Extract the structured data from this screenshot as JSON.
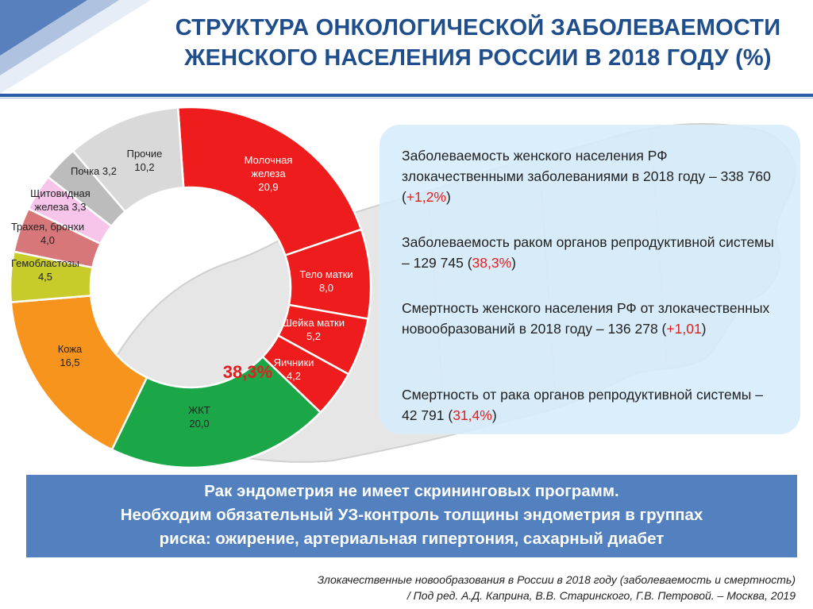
{
  "header": {
    "title_line1": "СТРУКТУРА ОНКОЛОГИЧЕСКОЙ ЗАБОЛЕВАЕМОСТИ",
    "title_line2": "ЖЕНСКОГО НАСЕЛЕНИЯ РОССИИ В 2018 ГОДУ (%)"
  },
  "chart_data": {
    "type": "pie",
    "center_label": "38,3%",
    "slices": [
      {
        "label_lines": [
          "Молочная",
          "железа"
        ],
        "value_text": "20,9",
        "value": 20.9,
        "color": "#ee1c1c",
        "text_color": "#ffffff"
      },
      {
        "label_lines": [
          "Тело матки"
        ],
        "value_text": "8,0",
        "value": 8.0,
        "color": "#ee1c1c",
        "text_color": "#ffffff"
      },
      {
        "label_lines": [
          "Шейка матки"
        ],
        "value_text": "5,2",
        "value": 5.2,
        "color": "#ee1c1c",
        "text_color": "#ffffff"
      },
      {
        "label_lines": [
          "Яичники"
        ],
        "value_text": "4,2",
        "value": 4.2,
        "color": "#ee1c1c",
        "text_color": "#ffffff"
      },
      {
        "label_lines": [
          "ЖКТ"
        ],
        "value_text": "20,0",
        "value": 20.0,
        "color": "#1ba748",
        "text_color": "#222222"
      },
      {
        "label_lines": [
          "Кожа"
        ],
        "value_text": "16,5",
        "value": 16.5,
        "color": "#f7941d",
        "text_color": "#222222"
      },
      {
        "label_lines": [
          "Гемобластозы"
        ],
        "value_text": "4,5",
        "value": 4.5,
        "color": "#c8cc2b",
        "text_color": "#222222"
      },
      {
        "label_lines": [
          "Трахея, бронхи"
        ],
        "value_text": "4,0",
        "value": 4.0,
        "color": "#d8777a",
        "text_color": "#222222"
      },
      {
        "label_lines": [
          "Щитовидная",
          "железа"
        ],
        "value_text": "3,3",
        "value": 3.3,
        "color": "#f7c4ea",
        "text_color": "#222222"
      },
      {
        "label_lines": [
          "Почка"
        ],
        "value_text": "3,2",
        "value": 3.2,
        "color": "#bcbcbc",
        "text_color": "#222222"
      },
      {
        "label_lines": [
          "Прочие"
        ],
        "value_text": "10,2",
        "value": 10.2,
        "color": "#d9d9d9",
        "text_color": "#222222"
      }
    ]
  },
  "info": {
    "block1_text": "Заболеваемость женского населения РФ злокачественными заболеваниями в 2018 году – 338 760 (",
    "block1_highlight": "+1,2%",
    "block1_end": ")",
    "block2_text": "Заболеваемость раком органов репродуктивной системы – 129 745 (",
    "block2_highlight": "38,3%",
    "block2_end": ")",
    "block3_text": "Смертность женского населения РФ от злокачественных новообразований в 2018 году – 136 278 (",
    "block3_highlight": "+1,01",
    "block3_end": ")",
    "block4_text": "Смертность от рака органов репродуктивной системы – 42 791 (",
    "block4_highlight": "31,4%",
    "block4_end": ")"
  },
  "banner": {
    "line1": "Рак эндометрия не имеет скрининговых программ.",
    "line2": "Необходим обязательный УЗ-контроль толщины эндометрия в группах",
    "line3": "риска: ожирение, артериальная гипертония, сахарный диабет"
  },
  "source": {
    "line1": "Злокачественные новообразования в России в 2018 году (заболеваемость и смертность)",
    "line2": "/ Под ред. А.Д. Каприна, В.В. Старинского, Г.В. Петровой. – Москва, 2019"
  }
}
